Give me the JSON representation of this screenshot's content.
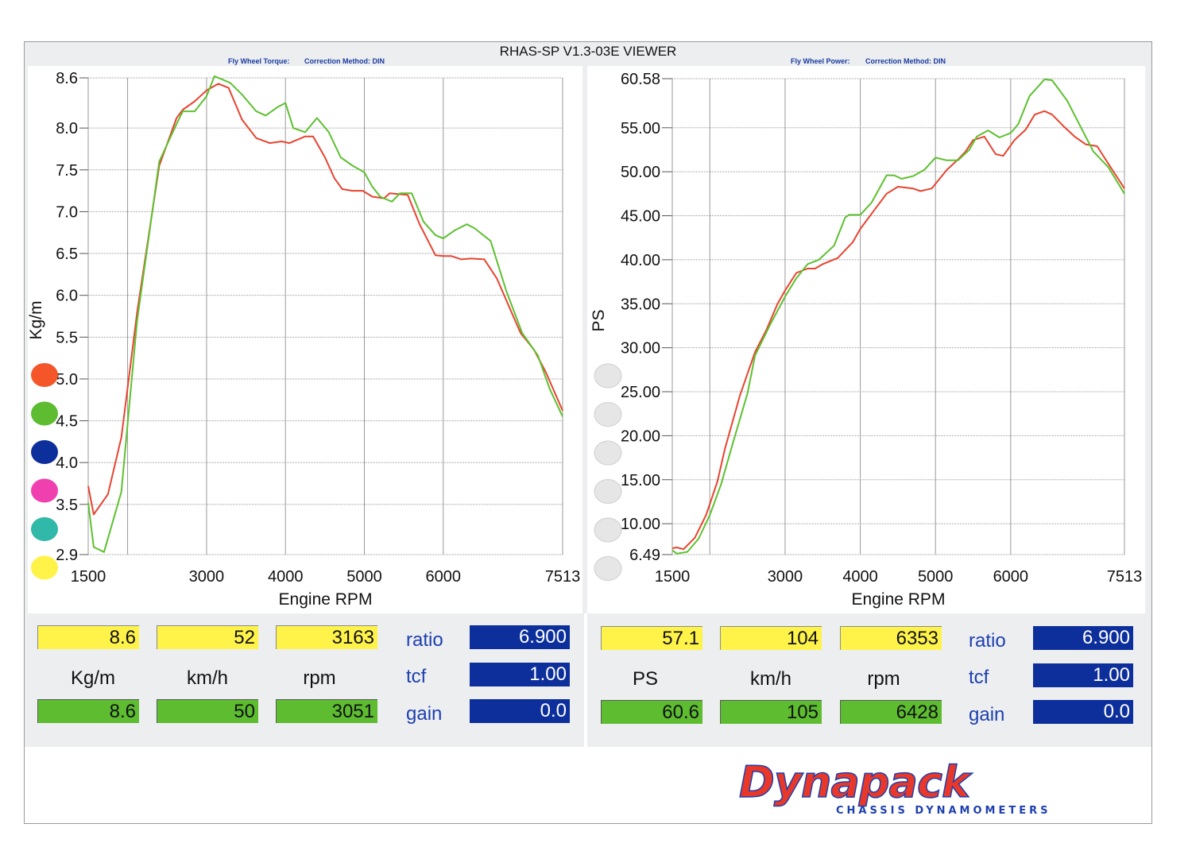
{
  "window": {
    "title": "RHAS-SP V1.3-03E VIEWER"
  },
  "panels": {
    "left": {
      "subtitle_a": "Fly Wheel Torque:",
      "subtitle_b": "Correction Method: DIN"
    },
    "right": {
      "subtitle_a": "Fly Wheel Power:",
      "subtitle_b": "Correction Method: DIN"
    }
  },
  "readouts": {
    "left": {
      "top": [
        "8.6",
        "52",
        "3163"
      ],
      "units": [
        "Kg/m",
        "km/h",
        "rpm"
      ],
      "bottom": [
        "8.6",
        "50",
        "3051"
      ],
      "labels": [
        "ratio",
        "tcf",
        "gain"
      ],
      "params": [
        "6.900",
        "1.00",
        "0.0"
      ]
    },
    "right": {
      "top": [
        "57.1",
        "104",
        "6353"
      ],
      "units": [
        "PS",
        "km/h",
        "rpm"
      ],
      "bottom": [
        "60.6",
        "105",
        "6428"
      ],
      "labels": [
        "ratio",
        "tcf",
        "gain"
      ],
      "params": [
        "6.900",
        "1.00",
        "0.0"
      ]
    }
  },
  "legend": {
    "colors": [
      "#f4562a",
      "#5dbc30",
      "#0d2f9c",
      "#f040b0",
      "#30b8a8",
      "#fff34a"
    ],
    "inactive_color": "#e6e6e6"
  },
  "logo": {
    "name": "Dynapack",
    "tagline": "CHASSIS DYNAMOMETERS"
  },
  "chart_data": [
    {
      "type": "line",
      "ylabel": "Kg/m",
      "xlabel": "Engine RPM",
      "xlim": [
        1500,
        7513
      ],
      "ylim": [
        2.9,
        8.6
      ],
      "xticks": [
        1500,
        3000,
        4000,
        5000,
        6000,
        7513
      ],
      "yticks": [
        2.9,
        3.5,
        4.0,
        4.5,
        5.0,
        5.5,
        6.0,
        6.5,
        7.0,
        7.5,
        8.0,
        8.6
      ],
      "ytick_labels": [
        "2.9",
        "3.5",
        "4.0",
        "4.5",
        "5.0",
        "5.5",
        "6.0",
        "6.5",
        "7.0",
        "7.5",
        "8.0",
        "8.6"
      ],
      "grid": true,
      "series": [
        {
          "color": "#e8432f",
          "x": [
            1500,
            1570,
            1750,
            1920,
            2120,
            2400,
            2620,
            2700,
            2850,
            3000,
            3150,
            3280,
            3450,
            3630,
            3800,
            3950,
            4050,
            4250,
            4350,
            4500,
            4620,
            4720,
            4850,
            4980,
            5100,
            5250,
            5320,
            5550,
            5700,
            5900,
            6000,
            6100,
            6230,
            6350,
            6520,
            6680,
            6850,
            6980,
            7150,
            7300,
            7513
          ],
          "y": [
            3.72,
            3.38,
            3.62,
            4.3,
            5.8,
            7.55,
            8.12,
            8.22,
            8.32,
            8.45,
            8.53,
            8.48,
            8.1,
            7.88,
            7.82,
            7.84,
            7.82,
            7.9,
            7.9,
            7.65,
            7.4,
            7.27,
            7.25,
            7.25,
            7.18,
            7.16,
            7.22,
            7.2,
            6.85,
            6.48,
            6.47,
            6.47,
            6.43,
            6.44,
            6.43,
            6.2,
            5.83,
            5.55,
            5.35,
            5.08,
            4.62
          ]
        },
        {
          "color": "#5dc030",
          "x": [
            1500,
            1570,
            1700,
            1920,
            2120,
            2400,
            2620,
            2700,
            2850,
            3000,
            3100,
            3200,
            3300,
            3450,
            3630,
            3750,
            3900,
            4000,
            4100,
            4250,
            4400,
            4550,
            4700,
            4850,
            5000,
            5100,
            5200,
            5350,
            5450,
            5600,
            5750,
            5900,
            6000,
            6150,
            6300,
            6400,
            6600,
            6800,
            7000,
            7200,
            7350,
            7513
          ],
          "y": [
            3.52,
            2.99,
            2.93,
            3.65,
            5.7,
            7.6,
            8.05,
            8.2,
            8.2,
            8.38,
            8.62,
            8.58,
            8.54,
            8.4,
            8.2,
            8.15,
            8.25,
            8.3,
            8.0,
            7.95,
            8.12,
            7.95,
            7.65,
            7.55,
            7.47,
            7.3,
            7.18,
            7.12,
            7.22,
            7.22,
            6.88,
            6.72,
            6.68,
            6.78,
            6.85,
            6.8,
            6.65,
            6.05,
            5.55,
            5.28,
            4.88,
            4.55
          ]
        }
      ]
    },
    {
      "type": "line",
      "ylabel": "PS",
      "xlabel": "Engine RPM",
      "xlim": [
        1500,
        7513
      ],
      "ylim": [
        6.49,
        60.58
      ],
      "xticks": [
        1500,
        3000,
        4000,
        5000,
        6000,
        7513
      ],
      "yticks": [
        6.49,
        10.0,
        15.0,
        20.0,
        25.0,
        30.0,
        35.0,
        40.0,
        45.0,
        50.0,
        55.0,
        60.58
      ],
      "ytick_labels": [
        "6.49",
        "10.00",
        "15.00",
        "20.00",
        "25.00",
        "30.00",
        "35.00",
        "40.00",
        "45.00",
        "50.00",
        "55.00",
        "60.58"
      ],
      "grid": true,
      "series": [
        {
          "color": "#e8432f",
          "x": [
            1500,
            1560,
            1650,
            1800,
            1950,
            2100,
            2200,
            2400,
            2600,
            2750,
            2900,
            3000,
            3150,
            3300,
            3400,
            3500,
            3700,
            3900,
            4000,
            4200,
            4350,
            4500,
            4700,
            4800,
            4950,
            5150,
            5300,
            5400,
            5500,
            5650,
            5800,
            5900,
            6050,
            6200,
            6320,
            6450,
            6550,
            6700,
            6850,
            7000,
            7150,
            7300,
            7513
          ],
          "y": [
            7.2,
            7.3,
            7.1,
            8.4,
            11.0,
            14.8,
            18.5,
            24.6,
            29.5,
            32.0,
            35.0,
            36.5,
            38.5,
            39.0,
            39.0,
            39.5,
            40.2,
            42.0,
            43.5,
            45.8,
            47.5,
            48.3,
            48.1,
            47.8,
            48.1,
            50.2,
            51.4,
            52.3,
            53.6,
            54.0,
            52.0,
            51.8,
            53.6,
            54.8,
            56.5,
            56.9,
            56.5,
            55.2,
            54.0,
            53.1,
            52.9,
            50.9,
            48.1
          ]
        },
        {
          "color": "#5dc030",
          "x": [
            1500,
            1560,
            1700,
            1850,
            2000,
            2150,
            2300,
            2500,
            2600,
            2800,
            3000,
            3150,
            3300,
            3450,
            3650,
            3800,
            3850,
            4000,
            4150,
            4350,
            4450,
            4550,
            4700,
            4850,
            5000,
            5150,
            5300,
            5450,
            5550,
            5700,
            5850,
            6000,
            6100,
            6250,
            6450,
            6550,
            6750,
            6900,
            7100,
            7300,
            7513
          ],
          "y": [
            7.0,
            6.6,
            6.8,
            8.3,
            11.0,
            14.5,
            19.0,
            24.8,
            29.1,
            32.6,
            35.8,
            37.9,
            39.5,
            40.0,
            41.6,
            44.8,
            45.1,
            45.1,
            46.5,
            49.6,
            49.6,
            49.2,
            49.5,
            50.2,
            51.6,
            51.3,
            51.3,
            52.5,
            54.0,
            54.7,
            53.9,
            54.4,
            55.4,
            58.6,
            60.5,
            60.4,
            58.1,
            55.6,
            52.3,
            50.5,
            47.5
          ]
        }
      ]
    }
  ]
}
